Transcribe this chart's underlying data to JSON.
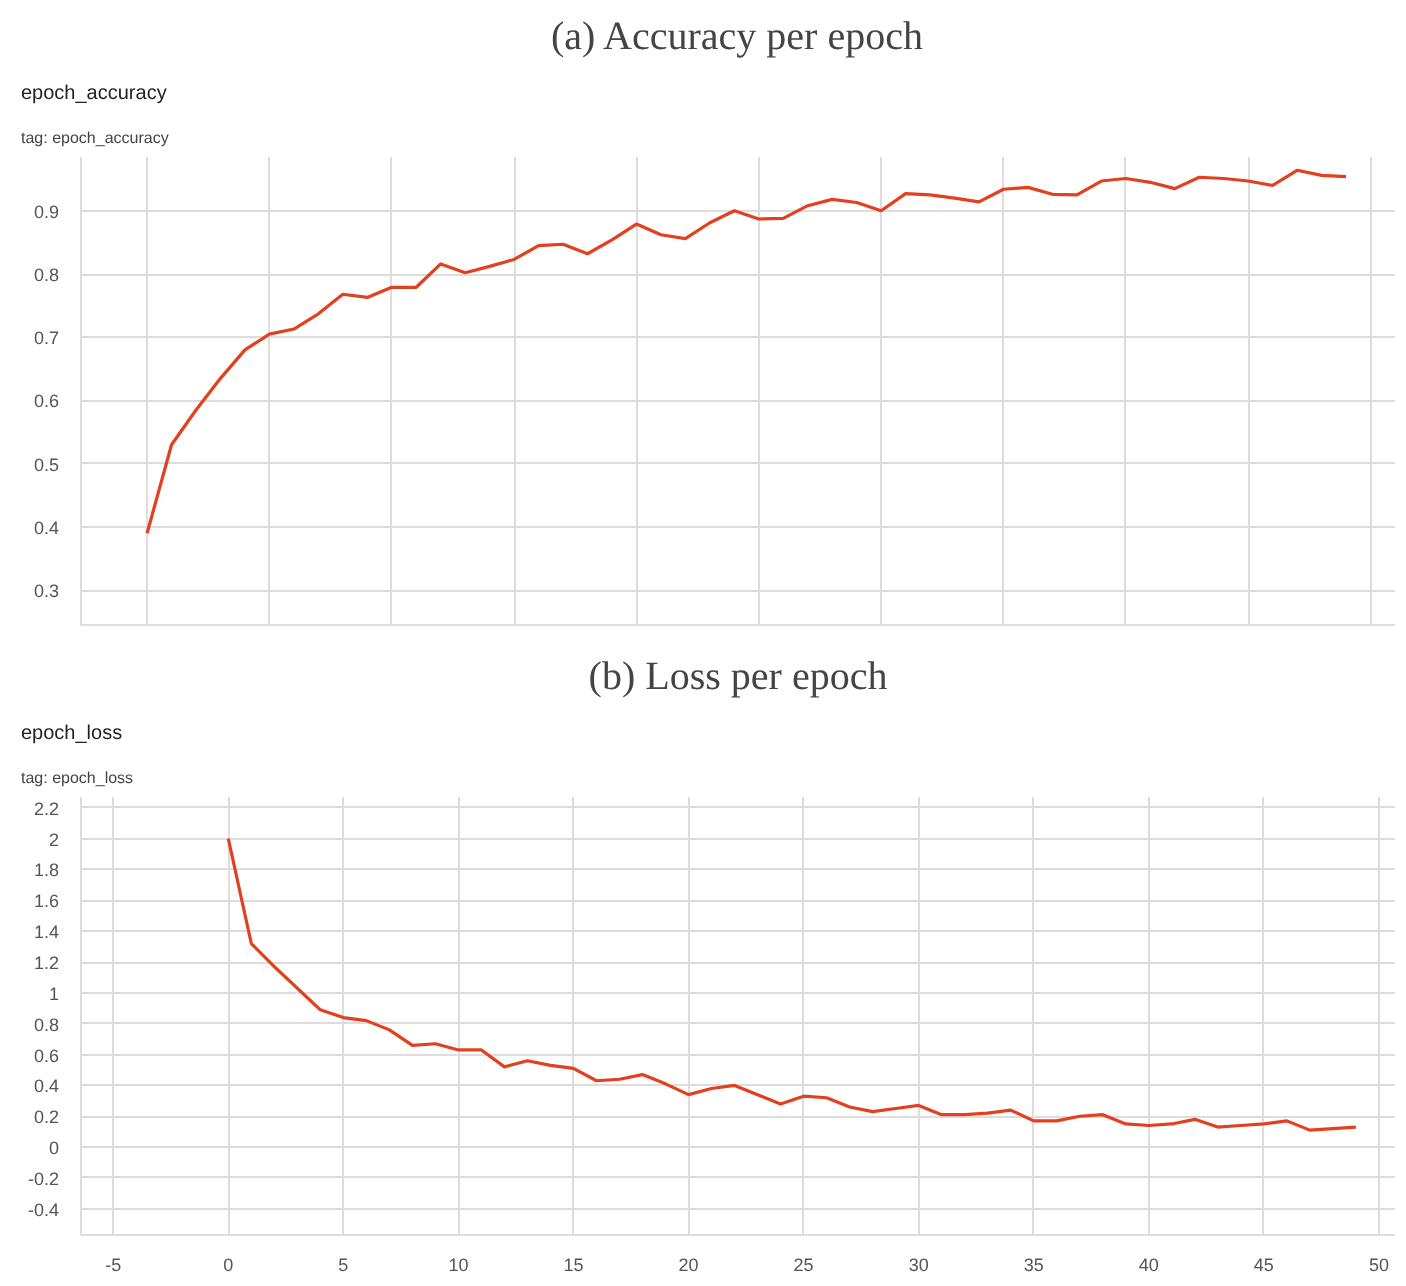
{
  "chart_data": [
    {
      "type": "line",
      "title": "(a) Accuracy per epoch",
      "subtitle": "epoch_accuracy",
      "annotations": [
        "tag: epoch_accuracy"
      ],
      "categories": [
        null,
        null,
        null,
        null,
        null,
        null,
        null,
        null,
        null,
        null,
        null,
        null,
        null,
        null,
        null,
        null,
        null,
        null,
        null,
        null,
        null,
        null,
        null,
        null,
        null,
        null,
        null,
        null,
        null,
        null,
        null,
        null,
        null,
        null,
        null,
        null,
        null,
        null,
        null,
        null,
        null,
        null,
        null,
        null,
        null,
        null,
        null,
        null,
        null,
        null
      ],
      "series": [
        {
          "color": "#e2401f",
          "values": [
            0.39,
            0.53,
            0.585,
            0.635,
            0.68,
            0.705,
            0.713,
            0.737,
            0.768,
            0.763,
            0.779,
            0.779,
            0.816,
            0.802,
            0.812,
            0.823,
            0.845,
            0.847,
            0.832,
            0.854,
            0.879,
            0.862,
            0.856,
            0.881,
            0.9,
            0.887,
            0.888,
            0.908,
            0.918,
            0.913,
            0.9,
            0.927,
            0.925,
            0.92,
            0.914,
            0.934,
            0.937,
            0.926,
            0.925,
            0.947,
            0.951,
            0.945,
            0.935,
            0.953,
            0.951,
            0.947,
            0.94,
            0.964,
            0.956,
            0.954
          ]
        }
      ],
      "ylim": [
        0.245,
        0.985
      ],
      "yticks": [
        0.3,
        0.4,
        0.5,
        0.6,
        0.7,
        0.8,
        0.9
      ],
      "grid": true
    },
    {
      "type": "line",
      "title": "(b) Loss per epoch",
      "subtitle": "epoch_loss",
      "annotations": [
        "tag: epoch_loss"
      ],
      "x": [
        0,
        1,
        2,
        3,
        4,
        5,
        6,
        7,
        8,
        9,
        10,
        11,
        12,
        13,
        14,
        15,
        16,
        17,
        18,
        19,
        20,
        21,
        22,
        23,
        24,
        25,
        26,
        27,
        28,
        29,
        30,
        31,
        32,
        33,
        34,
        35,
        36,
        37,
        38,
        39,
        40,
        41,
        42,
        43,
        44,
        45,
        46,
        47,
        48,
        49
      ],
      "series": [
        {
          "color": "#e2401f",
          "values": [
            2.0,
            1.32,
            1.17,
            1.03,
            0.89,
            0.84,
            0.82,
            0.76,
            0.66,
            0.67,
            0.63,
            0.63,
            0.52,
            0.56,
            0.53,
            0.51,
            0.43,
            0.44,
            0.47,
            0.41,
            0.34,
            0.38,
            0.4,
            0.34,
            0.28,
            0.33,
            0.32,
            0.26,
            0.23,
            0.25,
            0.27,
            0.21,
            0.21,
            0.22,
            0.24,
            0.17,
            0.17,
            0.2,
            0.21,
            0.15,
            0.14,
            0.15,
            0.18,
            0.13,
            0.14,
            0.15,
            0.17,
            0.11,
            0.12,
            0.13
          ]
        }
      ],
      "xlim": [
        -6.4,
        50.7
      ],
      "ylim": [
        -0.57,
        2.27
      ],
      "xticks": [
        -5,
        0,
        5,
        10,
        15,
        20,
        25,
        30,
        35,
        40,
        45,
        50
      ],
      "yticks": [
        -0.4,
        -0.2,
        0,
        0.2,
        0.4,
        0.6,
        0.8,
        1,
        1.2,
        1.4,
        1.6,
        1.8,
        2,
        2.2
      ],
      "grid": true
    }
  ]
}
